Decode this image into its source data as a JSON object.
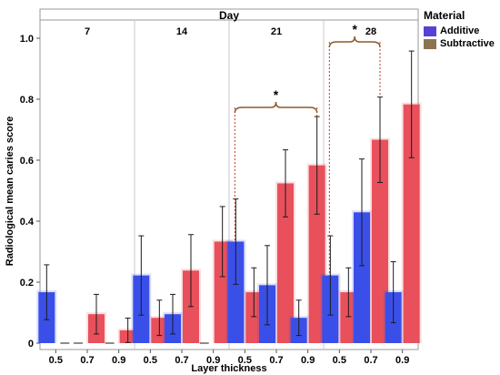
{
  "chart_data": {
    "type": "bar",
    "facet_title": "Day",
    "panels": [
      "7",
      "14",
      "21",
      "28"
    ],
    "categories": [
      "0.5",
      "0.7",
      "0.9"
    ],
    "xlabel": "Layer thickness",
    "ylabel": "Radiological mean caries score",
    "ylim": [
      0,
      1.0
    ],
    "yticks": [
      "0",
      "0.2",
      "0.4",
      "0.6",
      "0.8",
      "1.0"
    ],
    "legend_title": "Material",
    "legend_labels": [
      "Additive",
      "Subtractive"
    ],
    "series": [
      {
        "name": "Additive",
        "color": "#3a4fe8",
        "values": [
          [
            0.167,
            0,
            0
          ],
          [
            0.222,
            0.095,
            0
          ],
          [
            0.333,
            0.19,
            0.083
          ],
          [
            0.222,
            0.429,
            0.167
          ]
        ],
        "errors": [
          [
            0.09,
            0,
            0
          ],
          [
            0.13,
            0.065,
            0
          ],
          [
            0.14,
            0.13,
            0.058
          ],
          [
            0.13,
            0.175,
            0.1
          ]
        ]
      },
      {
        "name": "Subtractive",
        "color": "#e8505b",
        "values": [
          [
            0,
            0.095,
            0.042
          ],
          [
            0.083,
            0.238,
            0.333
          ],
          [
            0.167,
            0.524,
            0.583
          ],
          [
            0.167,
            0.667,
            0.783
          ]
        ],
        "errors": [
          [
            0,
            0.065,
            0.04
          ],
          [
            0.058,
            0.118,
            0.115
          ],
          [
            0.08,
            0.11,
            0.16
          ],
          [
            0.08,
            0.14,
            0.175
          ]
        ]
      }
    ],
    "annotations": [
      {
        "text": "*",
        "panel": "21",
        "between": [
          "0.5 Additive",
          "0.9 Subtractive"
        ]
      },
      {
        "text": "*",
        "panel": "28",
        "between": [
          "0.5 Additive",
          "0.7 Subtractive"
        ]
      }
    ]
  }
}
